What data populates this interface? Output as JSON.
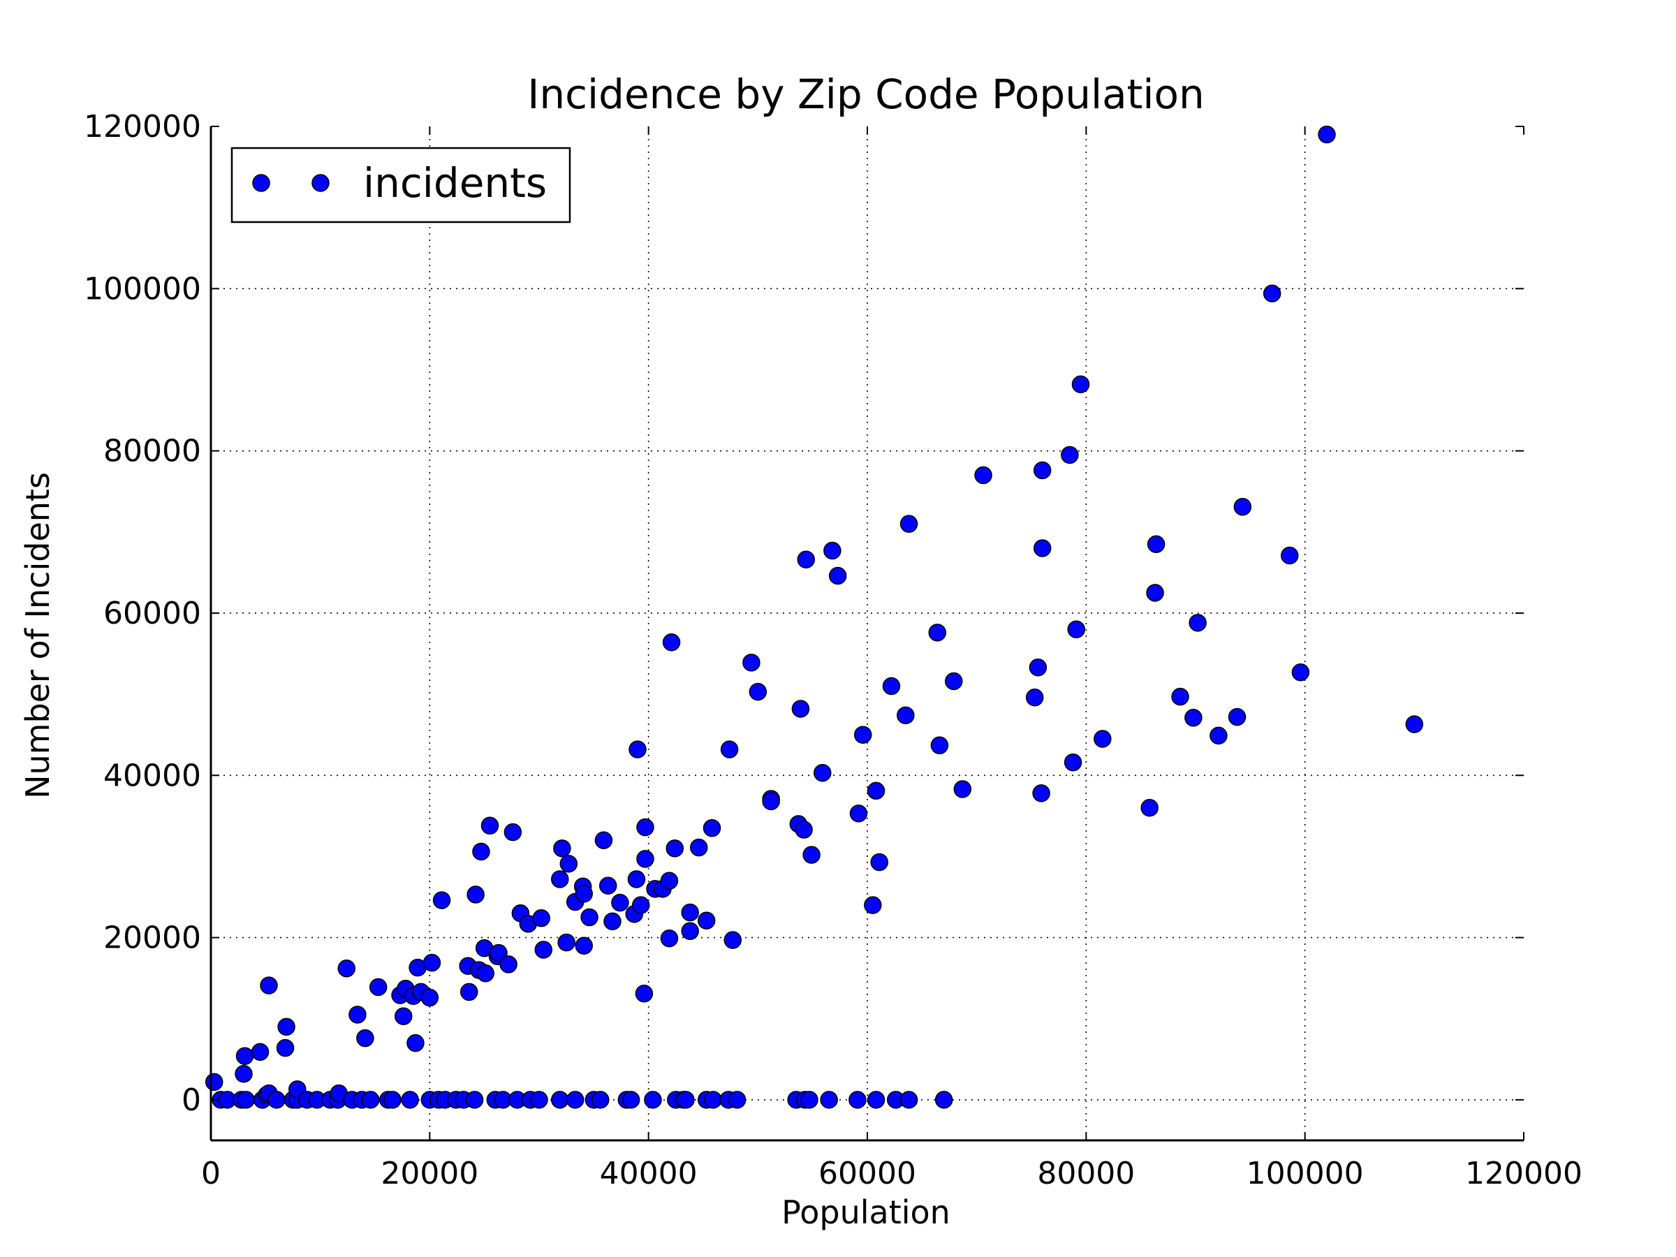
{
  "chart_data": {
    "type": "scatter",
    "title": "Incidence by Zip Code Population",
    "xlabel": "Population",
    "ylabel": "Number of Incidents",
    "xlim": [
      0,
      120000
    ],
    "ylim": [
      -5000,
      120000
    ],
    "x_ticks": [
      "0",
      "20000",
      "40000",
      "60000",
      "80000",
      "100000",
      "120000"
    ],
    "y_ticks": [
      "0",
      "20000",
      "40000",
      "60000",
      "80000",
      "100000",
      "120000"
    ],
    "grid": true,
    "grid_style": "dotted",
    "legend_position": "upper-left",
    "marker_color": "#0000ff",
    "series": [
      {
        "name": "incidents",
        "points": [
          [
            300,
            2200
          ],
          [
            900,
            0
          ],
          [
            1500,
            0
          ],
          [
            2800,
            0
          ],
          [
            3200,
            0
          ],
          [
            3000,
            3200
          ],
          [
            3100,
            5400
          ],
          [
            4500,
            5900
          ],
          [
            4700,
            0
          ],
          [
            5100,
            600
          ],
          [
            5300,
            14100
          ],
          [
            5300,
            800
          ],
          [
            6000,
            0
          ],
          [
            6800,
            6400
          ],
          [
            6900,
            9000
          ],
          [
            7500,
            0
          ],
          [
            7900,
            0
          ],
          [
            7900,
            1300
          ],
          [
            8800,
            0
          ],
          [
            9700,
            0
          ],
          [
            10900,
            0
          ],
          [
            11600,
            0
          ],
          [
            11700,
            800
          ],
          [
            12400,
            16200
          ],
          [
            12900,
            0
          ],
          [
            13400,
            10500
          ],
          [
            13800,
            0
          ],
          [
            14100,
            7600
          ],
          [
            14600,
            0
          ],
          [
            15300,
            13900
          ],
          [
            16200,
            0
          ],
          [
            16600,
            0
          ],
          [
            17300,
            12900
          ],
          [
            17600,
            10300
          ],
          [
            17800,
            13700
          ],
          [
            18200,
            0
          ],
          [
            18500,
            12800
          ],
          [
            18700,
            7000
          ],
          [
            18900,
            16300
          ],
          [
            19200,
            13300
          ],
          [
            20000,
            0
          ],
          [
            20000,
            12600
          ],
          [
            20200,
            16900
          ],
          [
            20800,
            0
          ],
          [
            21100,
            24600
          ],
          [
            21400,
            0
          ],
          [
            22400,
            0
          ],
          [
            23100,
            0
          ],
          [
            23500,
            16500
          ],
          [
            23600,
            13300
          ],
          [
            24100,
            0
          ],
          [
            24200,
            25300
          ],
          [
            24500,
            16000
          ],
          [
            24700,
            30600
          ],
          [
            25000,
            18700
          ],
          [
            25100,
            15600
          ],
          [
            25500,
            33800
          ],
          [
            26000,
            0
          ],
          [
            26200,
            17700
          ],
          [
            26300,
            18100
          ],
          [
            26700,
            0
          ],
          [
            27200,
            16700
          ],
          [
            27600,
            33000
          ],
          [
            28000,
            0
          ],
          [
            28300,
            23000
          ],
          [
            29000,
            21700
          ],
          [
            29200,
            0
          ],
          [
            30000,
            0
          ],
          [
            30200,
            22400
          ],
          [
            30400,
            18500
          ],
          [
            31900,
            0
          ],
          [
            31900,
            27200
          ],
          [
            32100,
            31000
          ],
          [
            32500,
            19400
          ],
          [
            32700,
            29100
          ],
          [
            33300,
            24400
          ],
          [
            33300,
            0
          ],
          [
            34000,
            26300
          ],
          [
            34100,
            25400
          ],
          [
            34100,
            19000
          ],
          [
            34600,
            22500
          ],
          [
            35000,
            0
          ],
          [
            35600,
            0
          ],
          [
            35900,
            32000
          ],
          [
            36300,
            26400
          ],
          [
            36700,
            22000
          ],
          [
            37400,
            24300
          ],
          [
            38000,
            0
          ],
          [
            38400,
            0
          ],
          [
            38700,
            22900
          ],
          [
            38900,
            27200
          ],
          [
            39000,
            43200
          ],
          [
            39300,
            24000
          ],
          [
            39600,
            13100
          ],
          [
            39700,
            33600
          ],
          [
            39700,
            29700
          ],
          [
            40400,
            0
          ],
          [
            40600,
            26000
          ],
          [
            41300,
            26000
          ],
          [
            41900,
            27000
          ],
          [
            41900,
            19900
          ],
          [
            42100,
            56400
          ],
          [
            42400,
            31000
          ],
          [
            42500,
            0
          ],
          [
            43200,
            0
          ],
          [
            43400,
            0
          ],
          [
            43800,
            23100
          ],
          [
            43800,
            20800
          ],
          [
            44600,
            31100
          ],
          [
            45300,
            22100
          ],
          [
            45300,
            0
          ],
          [
            45800,
            33500
          ],
          [
            45900,
            0
          ],
          [
            47300,
            0
          ],
          [
            47400,
            43200
          ],
          [
            47700,
            19700
          ],
          [
            48100,
            0
          ],
          [
            49400,
            53900
          ],
          [
            50000,
            50300
          ],
          [
            51200,
            37100
          ],
          [
            51200,
            36800
          ],
          [
            53500,
            0
          ],
          [
            53700,
            34000
          ],
          [
            53900,
            48200
          ],
          [
            54200,
            33300
          ],
          [
            54300,
            0
          ],
          [
            54400,
            66600
          ],
          [
            54700,
            0
          ],
          [
            54900,
            30200
          ],
          [
            55900,
            40300
          ],
          [
            56500,
            0
          ],
          [
            56800,
            67700
          ],
          [
            57300,
            64600
          ],
          [
            59100,
            0
          ],
          [
            59200,
            35300
          ],
          [
            59600,
            45000
          ],
          [
            60500,
            24000
          ],
          [
            60800,
            38100
          ],
          [
            60800,
            0
          ],
          [
            61100,
            29300
          ],
          [
            62200,
            51000
          ],
          [
            62600,
            0
          ],
          [
            63500,
            47400
          ],
          [
            63800,
            0
          ],
          [
            63800,
            71000
          ],
          [
            66400,
            57600
          ],
          [
            66600,
            43700
          ],
          [
            67000,
            0
          ],
          [
            67900,
            51600
          ],
          [
            68700,
            38300
          ],
          [
            70600,
            77000
          ],
          [
            75300,
            49600
          ],
          [
            75600,
            53300
          ],
          [
            75900,
            37800
          ],
          [
            76000,
            77600
          ],
          [
            76000,
            68000
          ],
          [
            78500,
            79500
          ],
          [
            78800,
            41600
          ],
          [
            79100,
            58000
          ],
          [
            79500,
            88200
          ],
          [
            81500,
            44500
          ],
          [
            85800,
            36000
          ],
          [
            86300,
            62500
          ],
          [
            86400,
            68500
          ],
          [
            88600,
            49700
          ],
          [
            89800,
            47100
          ],
          [
            90200,
            58800
          ],
          [
            92100,
            44900
          ],
          [
            93800,
            47200
          ],
          [
            94300,
            73100
          ],
          [
            97000,
            99400
          ],
          [
            98600,
            67100
          ],
          [
            99600,
            52700
          ],
          [
            102000,
            119000
          ],
          [
            110000,
            46300
          ]
        ]
      }
    ]
  }
}
